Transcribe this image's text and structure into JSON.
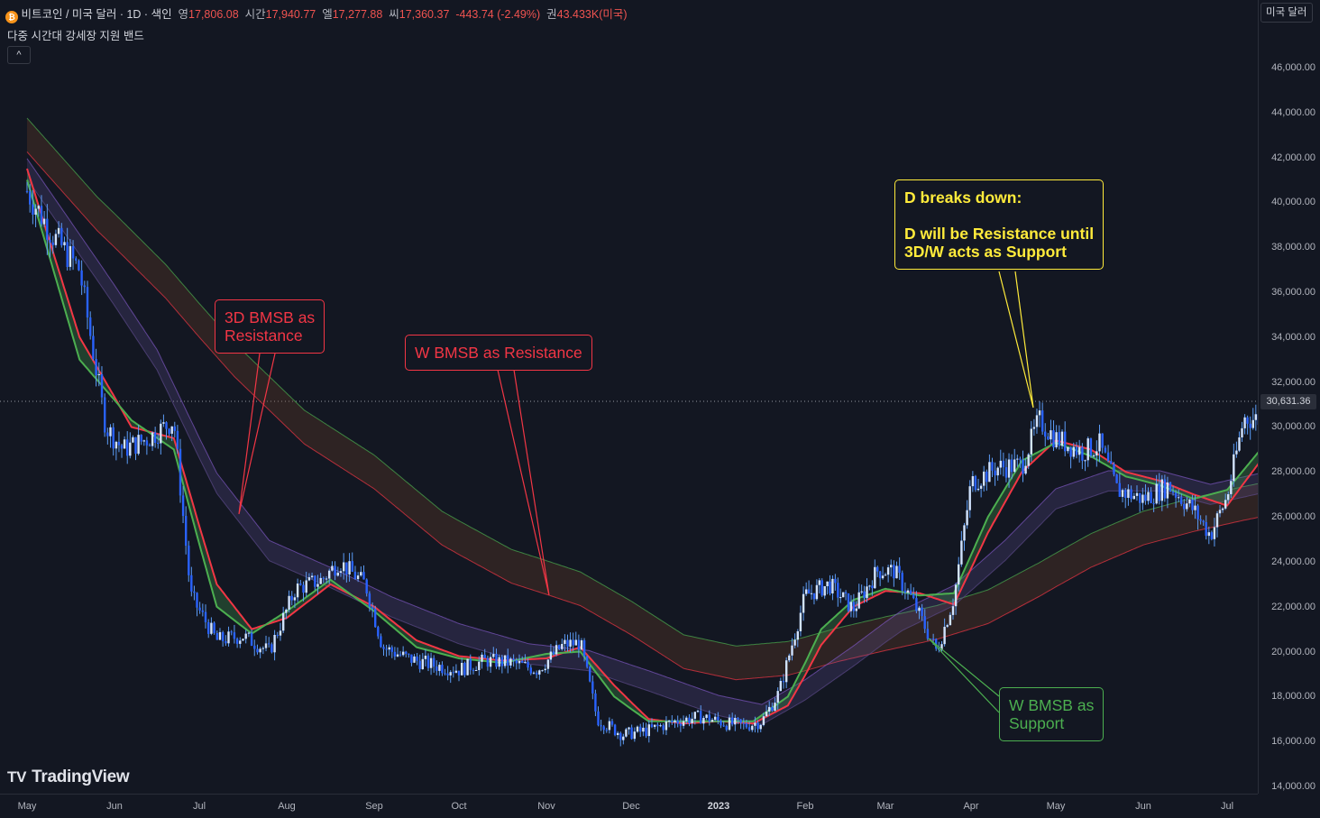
{
  "header": {
    "coin_icon": "bitcoin-icon",
    "symbol_title": "비트코인 / 미국 달러 · 1D · 색인",
    "open_label": "영",
    "open_value": "17,806.08",
    "high_label": "시간",
    "high_value": "17,940.77",
    "low_label": "엘",
    "low_value": "17,277.88",
    "close_label": "씨",
    "close_value": "17,360.37",
    "change": "-443.74 (-2.49%)",
    "volume_label": "권",
    "volume_value": "43.433K(미국)"
  },
  "indicator_title": "다중 시간대 강세장 지원 밴드",
  "collapse_icon": "chevron-up-icon",
  "currency_button": "미국 달러",
  "current_price_tag": "30,631.36",
  "branding": "TradingView",
  "annotations": [
    {
      "id": "note-3d",
      "lines": [
        "3D BMSB as",
        "Resistance"
      ],
      "color": "#f23645"
    },
    {
      "id": "note-w",
      "lines": [
        "W BMSB as Resistance"
      ],
      "color": "#f23645"
    },
    {
      "id": "note-d",
      "lines": [
        "D breaks down:",
        "",
        "D will be Resistance until",
        "3D/W acts as Support"
      ],
      "color": "#ffeb3b"
    },
    {
      "id": "note-wsup",
      "lines": [
        "W BMSB as",
        "Support"
      ],
      "color": "#4caf50"
    }
  ],
  "chart_data": {
    "type": "line",
    "description_visible": "BTC/USD daily candlesticks with D, 3D and W bull market support bands",
    "y_axis_labels": [
      "46,000.00",
      "44,000.00",
      "42,000.00",
      "40,000.00",
      "38,000.00",
      "36,000.00",
      "34,000.00",
      "32,000.00",
      "30,000.00",
      "28,000.00",
      "26,000.00",
      "24,000.00",
      "22,000.00",
      "20,000.00",
      "18,000.00",
      "16,000.00",
      "14,000.00"
    ],
    "x_axis_labels": [
      "May",
      "Jun",
      "Jul",
      "Aug",
      "Sep",
      "Oct",
      "Nov",
      "Dec",
      "2023",
      "Feb",
      "Mar",
      "Apr",
      "May",
      "Jun",
      "Jul"
    ],
    "ylim": [
      14000,
      47000
    ],
    "xlim": [
      0,
      15.5
    ],
    "current_price": 30631.36,
    "series": [
      {
        "key": "price",
        "color": "#5b9cf6",
        "points": [
          [
            0,
            40500
          ],
          [
            0.3,
            38500
          ],
          [
            0.6,
            37000
          ],
          [
            0.9,
            30000
          ],
          [
            1.1,
            29000
          ],
          [
            1.4,
            29500
          ],
          [
            1.7,
            30300
          ],
          [
            1.9,
            22500
          ],
          [
            2.2,
            20500
          ],
          [
            2.5,
            20700
          ],
          [
            2.8,
            20000
          ],
          [
            3.1,
            22800
          ],
          [
            3.4,
            23200
          ],
          [
            3.6,
            24000
          ],
          [
            3.9,
            23000
          ],
          [
            4.1,
            20200
          ],
          [
            4.4,
            19700
          ],
          [
            4.7,
            19400
          ],
          [
            5.0,
            19200
          ],
          [
            5.3,
            19600
          ],
          [
            5.6,
            19500
          ],
          [
            5.9,
            19200
          ],
          [
            6.2,
            20300
          ],
          [
            6.4,
            20400
          ],
          [
            6.6,
            17000
          ],
          [
            6.9,
            16300
          ],
          [
            7.2,
            16500
          ],
          [
            7.5,
            16900
          ],
          [
            7.8,
            17100
          ],
          [
            8.1,
            16800
          ],
          [
            8.3,
            16700
          ],
          [
            8.5,
            16900
          ],
          [
            8.7,
            18200
          ],
          [
            9.0,
            22500
          ],
          [
            9.3,
            23000
          ],
          [
            9.6,
            21900
          ],
          [
            9.9,
            23600
          ],
          [
            10.1,
            23600
          ],
          [
            10.3,
            22400
          ],
          [
            10.6,
            20000
          ],
          [
            10.8,
            22400
          ],
          [
            11.0,
            27500
          ],
          [
            11.3,
            28200
          ],
          [
            11.6,
            28300
          ],
          [
            11.8,
            30300
          ],
          [
            12.0,
            29500
          ],
          [
            12.3,
            28900
          ],
          [
            12.5,
            29200
          ],
          [
            12.7,
            27200
          ],
          [
            13.0,
            26800
          ],
          [
            13.3,
            27400
          ],
          [
            13.6,
            26300
          ],
          [
            13.8,
            25200
          ],
          [
            14.0,
            26900
          ],
          [
            14.2,
            30400
          ],
          [
            14.5,
            30300
          ],
          [
            14.8,
            30500
          ],
          [
            15.0,
            30600
          ],
          [
            15.3,
            30400
          ]
        ]
      },
      {
        "key": "d_band_red",
        "color": "#f23645",
        "points": [
          [
            0,
            41500
          ],
          [
            0.6,
            34000
          ],
          [
            1.2,
            30000
          ],
          [
            1.7,
            29500
          ],
          [
            2.2,
            23000
          ],
          [
            2.6,
            21000
          ],
          [
            3.0,
            21500
          ],
          [
            3.5,
            23000
          ],
          [
            4.0,
            22000
          ],
          [
            4.5,
            20500
          ],
          [
            5.0,
            19800
          ],
          [
            5.5,
            19600
          ],
          [
            6.0,
            19700
          ],
          [
            6.4,
            20200
          ],
          [
            6.8,
            18500
          ],
          [
            7.2,
            17000
          ],
          [
            7.6,
            16800
          ],
          [
            8.0,
            16900
          ],
          [
            8.4,
            16800
          ],
          [
            8.8,
            17600
          ],
          [
            9.2,
            20300
          ],
          [
            9.6,
            22000
          ],
          [
            10.0,
            22700
          ],
          [
            10.4,
            22600
          ],
          [
            10.8,
            22100
          ],
          [
            11.2,
            25300
          ],
          [
            11.6,
            28000
          ],
          [
            12.0,
            29400
          ],
          [
            12.4,
            29000
          ],
          [
            12.8,
            28000
          ],
          [
            13.2,
            27600
          ],
          [
            13.6,
            27000
          ],
          [
            14.0,
            26500
          ],
          [
            14.4,
            28500
          ],
          [
            14.8,
            30200
          ],
          [
            15.0,
            30300
          ]
        ]
      },
      {
        "key": "d_band_green",
        "color": "#4caf50",
        "points": [
          [
            0,
            41000
          ],
          [
            0.6,
            33000
          ],
          [
            1.2,
            30300
          ],
          [
            1.7,
            29000
          ],
          [
            2.2,
            22000
          ],
          [
            2.6,
            20800
          ],
          [
            3.0,
            21800
          ],
          [
            3.5,
            23200
          ],
          [
            4.0,
            21800
          ],
          [
            4.5,
            20200
          ],
          [
            5.0,
            19700
          ],
          [
            5.5,
            19500
          ],
          [
            6.0,
            19900
          ],
          [
            6.4,
            20000
          ],
          [
            6.8,
            18000
          ],
          [
            7.2,
            16900
          ],
          [
            7.6,
            16900
          ],
          [
            8.0,
            16900
          ],
          [
            8.4,
            16900
          ],
          [
            8.8,
            18000
          ],
          [
            9.2,
            21000
          ],
          [
            9.6,
            22300
          ],
          [
            10.0,
            22800
          ],
          [
            10.4,
            22500
          ],
          [
            10.8,
            22600
          ],
          [
            11.2,
            26000
          ],
          [
            11.6,
            28500
          ],
          [
            12.0,
            29300
          ],
          [
            12.4,
            28700
          ],
          [
            12.8,
            27800
          ],
          [
            13.2,
            27400
          ],
          [
            13.6,
            26800
          ],
          [
            14.0,
            27200
          ],
          [
            14.4,
            29000
          ],
          [
            14.8,
            30100
          ],
          [
            15.0,
            30500
          ]
        ]
      },
      {
        "key": "three_d_band",
        "color": "#7e57c2",
        "points": [
          [
            0,
            41500
          ],
          [
            0.8,
            37000
          ],
          [
            1.5,
            33000
          ],
          [
            2.2,
            27500
          ],
          [
            2.8,
            24500
          ],
          [
            3.5,
            23300
          ],
          [
            4.2,
            22000
          ],
          [
            5.0,
            20800
          ],
          [
            5.8,
            19900
          ],
          [
            6.5,
            19600
          ],
          [
            7.2,
            18700
          ],
          [
            8.0,
            17600
          ],
          [
            8.5,
            17200
          ],
          [
            9.0,
            18300
          ],
          [
            9.6,
            19800
          ],
          [
            10.2,
            21400
          ],
          [
            10.8,
            22500
          ],
          [
            11.4,
            24500
          ],
          [
            12.0,
            26800
          ],
          [
            12.6,
            27600
          ],
          [
            13.2,
            27600
          ],
          [
            13.8,
            27000
          ],
          [
            14.4,
            27500
          ],
          [
            15.0,
            28300
          ]
        ]
      },
      {
        "key": "w_band",
        "color": "#f23645",
        "points": [
          [
            0,
            43000
          ],
          [
            0.8,
            39500
          ],
          [
            1.6,
            36500
          ],
          [
            2.4,
            33000
          ],
          [
            3.2,
            30000
          ],
          [
            4.0,
            28000
          ],
          [
            4.8,
            25500
          ],
          [
            5.6,
            23800
          ],
          [
            6.4,
            22800
          ],
          [
            7.0,
            21500
          ],
          [
            7.6,
            20000
          ],
          [
            8.2,
            19500
          ],
          [
            8.8,
            19700
          ],
          [
            9.4,
            20300
          ],
          [
            10.0,
            20800
          ],
          [
            10.6,
            21300
          ],
          [
            11.2,
            22000
          ],
          [
            11.8,
            23200
          ],
          [
            12.4,
            24500
          ],
          [
            13.0,
            25500
          ],
          [
            13.6,
            26100
          ],
          [
            14.2,
            26600
          ],
          [
            15.0,
            27200
          ]
        ]
      }
    ]
  }
}
